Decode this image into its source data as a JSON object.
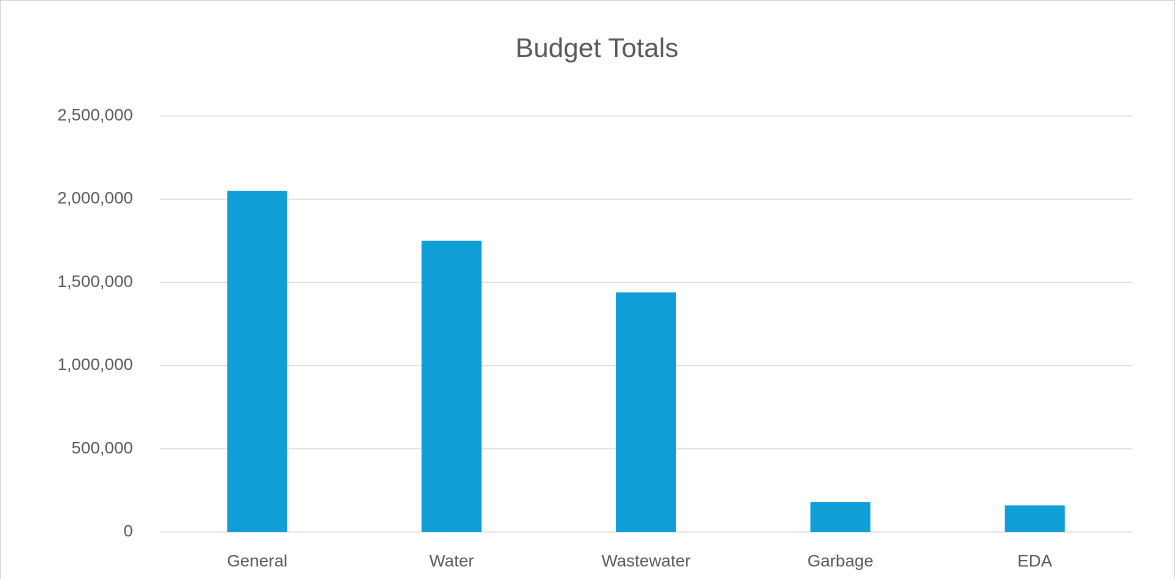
{
  "chart_data": {
    "type": "bar",
    "title": "Budget Totals",
    "categories": [
      "General",
      "Water",
      "Wastewater",
      "Garbage",
      "EDA"
    ],
    "values": [
      2050000,
      1750000,
      1440000,
      180000,
      160000
    ],
    "color": "#0f9ed5",
    "ylim": [
      0,
      2500000
    ],
    "yticks": [
      0,
      {
        "value": 500000,
        "label": "500,000"
      },
      {
        "value": 1000000,
        "label": "1,000,000"
      },
      {
        "value": 1500000,
        "label": "1,500,000"
      },
      {
        "value": 2000000,
        "label": "2,000,000"
      },
      {
        "value": 2500000,
        "label": "2,500,000"
      }
    ],
    "grid": true
  }
}
